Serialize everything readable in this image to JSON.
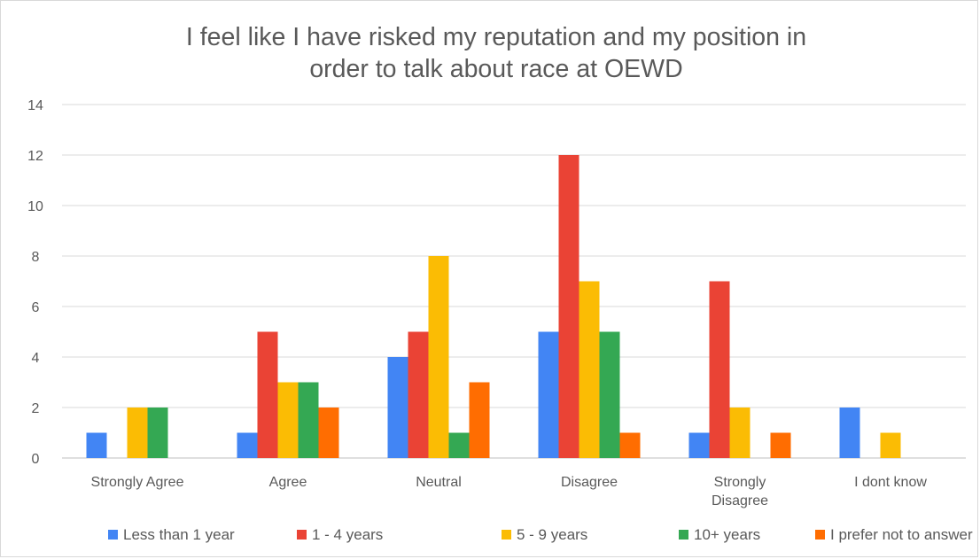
{
  "chart_data": {
    "type": "bar",
    "title_lines": [
      "I feel like I have risked my reputation and my position in",
      "order to talk about race at OEWD"
    ],
    "categories": [
      [
        "Strongly Agree"
      ],
      [
        "Agree"
      ],
      [
        "Neutral"
      ],
      [
        "Disagree"
      ],
      [
        "Strongly",
        "Disagree"
      ],
      [
        "I dont know"
      ]
    ],
    "series": [
      {
        "name": "Less than 1 year",
        "color": "#4285f4",
        "values": [
          1,
          1,
          4,
          5,
          1,
          2
        ]
      },
      {
        "name": "1 - 4 years",
        "color": "#ea4335",
        "values": [
          0,
          5,
          5,
          12,
          7,
          0
        ]
      },
      {
        "name": "5 - 9 years",
        "color": "#fbbc04",
        "values": [
          2,
          3,
          8,
          7,
          2,
          1
        ]
      },
      {
        "name": "10+ years",
        "color": "#34a853",
        "values": [
          2,
          3,
          1,
          5,
          0,
          0
        ]
      },
      {
        "name": "I prefer not to answer",
        "color": "#ff6d01",
        "values": [
          0,
          2,
          3,
          1,
          1,
          0
        ]
      }
    ],
    "ylim": [
      0,
      14
    ],
    "yticks": [
      0,
      2,
      4,
      6,
      8,
      10,
      12,
      14
    ],
    "grid": true,
    "legend_position": "bottom"
  }
}
